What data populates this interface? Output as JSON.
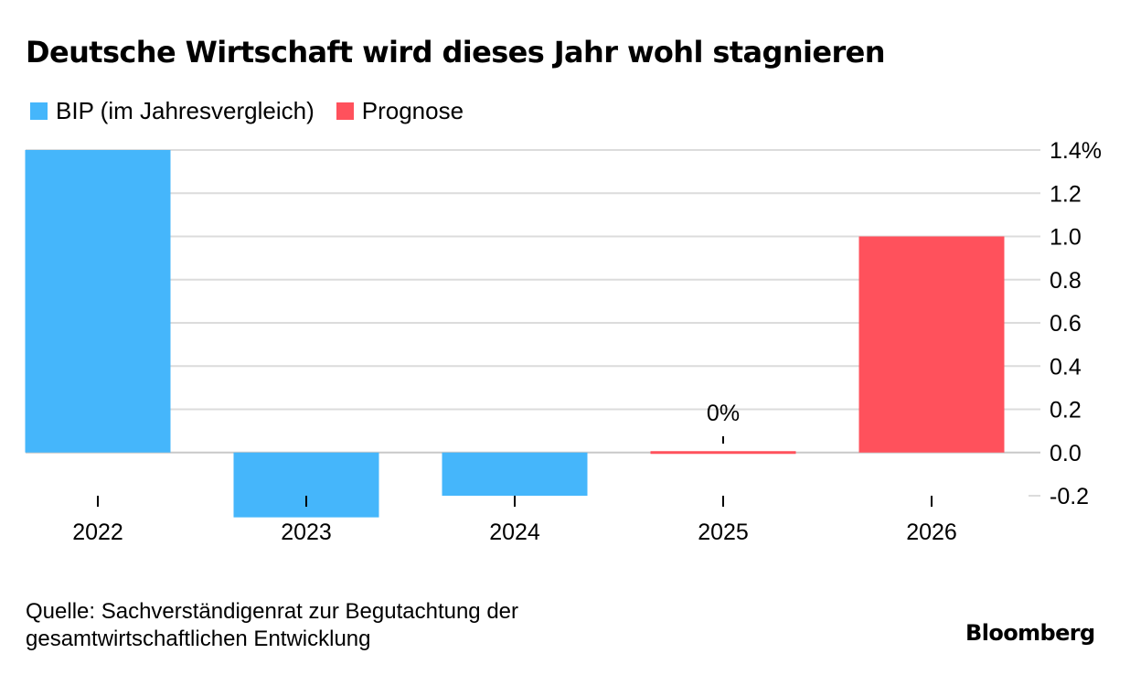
{
  "title": "Deutsche Wirtschaft wird dieses Jahr wohl stagnieren",
  "legend": [
    {
      "label": "BIP (im Jahresvergleich)",
      "color": "#45b6fb"
    },
    {
      "label": "Prognose",
      "color": "#ff515c"
    }
  ],
  "chart_data": {
    "type": "bar",
    "categories": [
      "2022",
      "2023",
      "2024",
      "2025",
      "2026"
    ],
    "series": [
      {
        "name": "BIP (im Jahresvergleich)",
        "values": [
          1.4,
          -0.3,
          -0.2,
          null,
          null
        ],
        "color": "#45b6fb"
      },
      {
        "name": "Prognose",
        "values": [
          null,
          null,
          null,
          0.0,
          1.0
        ],
        "color": "#ff515c"
      }
    ],
    "ylim": [
      -0.2,
      1.4
    ],
    "yticks": [
      1.4,
      1.2,
      1.0,
      0.8,
      0.6,
      0.4,
      0.2,
      0.0,
      -0.2
    ],
    "ytick_labels": [
      "1.4%",
      "1.2",
      "1.0",
      "0.8",
      "0.6",
      "0.4",
      "0.2",
      "0.0",
      "-0.2"
    ],
    "y_axis_position": "right",
    "grid": true,
    "legend_position": "top-left",
    "annotations": [
      {
        "category": "2025",
        "text": "0%"
      }
    ]
  },
  "source": {
    "line1": "Quelle: Sachverständigenrat zur Begutachtung der",
    "line2": "gesamtwirtschaftlichen Entwicklung"
  },
  "brand": "Bloomberg",
  "colors": {
    "grid": "#dcdcdc",
    "zero_line": "#c8c8c8",
    "tick": "#000000"
  }
}
